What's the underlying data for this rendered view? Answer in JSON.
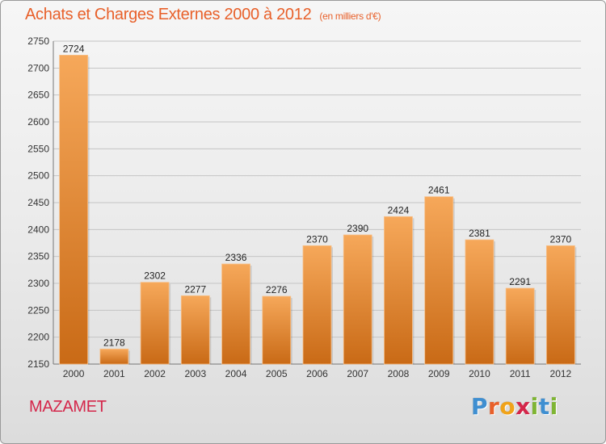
{
  "header": {
    "title": "Achats et Charges Externes 2000 à 2012",
    "subtitle": "(en milliers d'€)"
  },
  "footer": {
    "city": "MAZAMET",
    "logo_text": "Proxiti",
    "logo_letters": [
      "P",
      "r",
      "o",
      "x",
      "i",
      "t",
      "i"
    ],
    "logo_colors": [
      "#3f8fd1",
      "#e8602a",
      "#f0a31a",
      "#d4264a",
      "#7fb534",
      "#3f8fd1",
      "#7fb534"
    ]
  },
  "colors": {
    "bar_top": "#f6a85a",
    "bar_bottom": "#c96a16",
    "title": "#e8602a",
    "city": "#d4264a"
  },
  "chart_data": {
    "type": "bar",
    "categories": [
      "2000",
      "2001",
      "2002",
      "2003",
      "2004",
      "2005",
      "2006",
      "2007",
      "2008",
      "2009",
      "2010",
      "2011",
      "2012"
    ],
    "values": [
      2724,
      2178,
      2302,
      2277,
      2336,
      2276,
      2370,
      2390,
      2424,
      2461,
      2381,
      2291,
      2370
    ],
    "ylim": [
      2150,
      2750
    ],
    "yticks": [
      2150,
      2200,
      2250,
      2300,
      2350,
      2400,
      2450,
      2500,
      2550,
      2600,
      2650,
      2700,
      2750
    ],
    "grid": true,
    "xlabel": "",
    "ylabel": ""
  }
}
